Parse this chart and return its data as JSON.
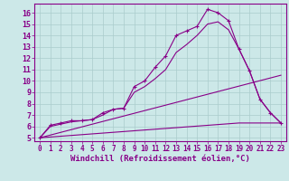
{
  "background_color": "#cce8e8",
  "grid_color": "#aacccc",
  "line_color": "#880088",
  "xlabel": "Windchill (Refroidissement éolien,°C)",
  "xlabel_fontsize": 6.5,
  "xtick_fontsize": 5.5,
  "ytick_fontsize": 6,
  "xlim": [
    -0.5,
    23.5
  ],
  "ylim": [
    4.7,
    16.8
  ],
  "yticks": [
    5,
    6,
    7,
    8,
    9,
    10,
    11,
    12,
    13,
    14,
    15,
    16
  ],
  "xticks": [
    0,
    1,
    2,
    3,
    4,
    5,
    6,
    7,
    8,
    9,
    10,
    11,
    12,
    13,
    14,
    15,
    16,
    17,
    18,
    19,
    20,
    21,
    22,
    23
  ],
  "series": [
    {
      "x": [
        0,
        1,
        2,
        3,
        4,
        5,
        6,
        7,
        8,
        9,
        10,
        11,
        12,
        13,
        14,
        15,
        16,
        17,
        18,
        19,
        20,
        21,
        22,
        23
      ],
      "y": [
        5.0,
        6.1,
        6.3,
        6.5,
        6.5,
        6.6,
        7.2,
        7.5,
        7.6,
        9.5,
        10.0,
        11.2,
        12.2,
        14.0,
        14.4,
        14.8,
        16.3,
        16.0,
        15.3,
        12.8,
        10.9,
        8.4,
        7.2,
        6.3
      ],
      "has_markers": true
    },
    {
      "x": [
        0,
        1,
        2,
        3,
        4,
        5,
        6,
        7,
        8,
        9,
        10,
        11,
        12,
        13,
        14,
        15,
        16,
        17,
        18,
        19,
        20,
        21,
        22,
        23
      ],
      "y": [
        5.0,
        6.0,
        6.2,
        6.4,
        6.5,
        6.6,
        7.0,
        7.5,
        7.6,
        9.0,
        9.5,
        10.2,
        11.0,
        12.5,
        13.2,
        14.0,
        15.0,
        15.2,
        14.5,
        12.8,
        10.9,
        8.4,
        7.2,
        6.3
      ],
      "has_markers": false
    },
    {
      "x": [
        0,
        23
      ],
      "y": [
        5.0,
        10.5
      ],
      "has_markers": false
    },
    {
      "x": [
        0,
        19,
        23
      ],
      "y": [
        5.0,
        6.3,
        6.3
      ],
      "has_markers": false
    }
  ]
}
